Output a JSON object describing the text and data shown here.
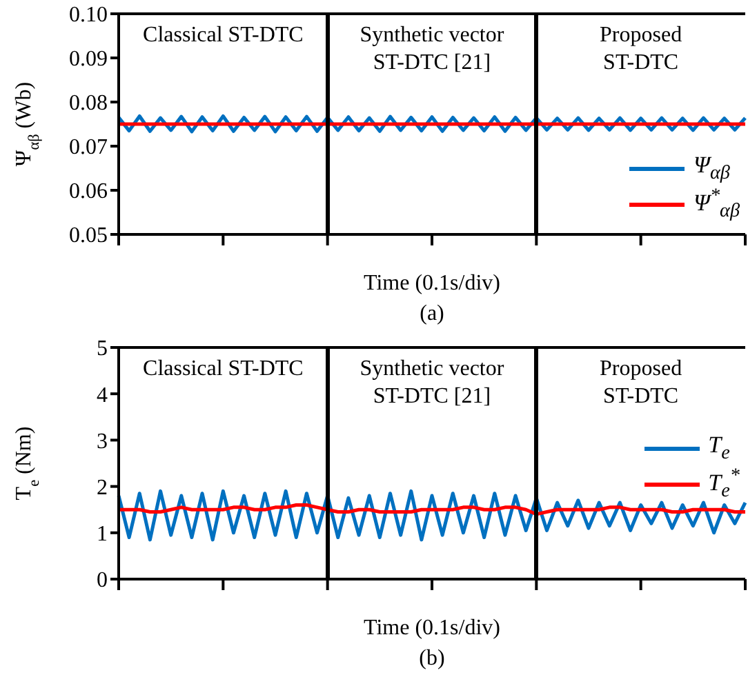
{
  "chart_data": [
    {
      "type": "line",
      "title": "(a)",
      "xlabel": "Time (0.1s/div)",
      "ylabel": "Ψ$_{αβ}$ (Wb)",
      "tick_labels": "y",
      "categories": [
        null,
        null,
        null,
        null,
        null,
        null,
        null,
        null,
        null,
        null,
        null,
        null,
        null,
        null,
        null,
        null,
        null,
        null,
        null,
        null,
        null,
        null,
        null,
        null,
        null,
        null,
        null,
        null,
        null,
        null,
        null,
        null,
        null,
        null,
        null,
        null,
        null,
        null,
        null,
        null,
        null,
        null,
        null,
        null,
        null,
        null,
        null,
        null,
        null,
        null,
        null,
        null,
        null,
        null,
        null,
        null,
        null,
        null,
        null,
        null,
        null
      ],
      "ylim": [
        0.05,
        0.1
      ],
      "yticks": [
        {
          "value": 0.05,
          "label": "0.05"
        },
        {
          "value": 0.06,
          "label": "0.06"
        },
        {
          "value": 0.07,
          "label": "0.07"
        },
        {
          "value": 0.08,
          "label": "0.08"
        },
        {
          "value": 0.09,
          "label": "0.09"
        },
        {
          "value": 0.1,
          "label": "0.10"
        }
      ],
      "legend": "bottom right",
      "line_style": "solid",
      "annotations": [
        "Classical ST-DTC",
        "Synthetic vector\nST-DTC [21]",
        "Proposed\nST-DTC"
      ],
      "series": [
        {
          "name": "Ψ$_{αβ}$",
          "color": "#0070c0",
          "values": [
            0.0765,
            0.0735,
            0.0768,
            0.0734,
            0.0764,
            0.0736,
            0.0767,
            0.0733,
            0.0766,
            0.0735,
            0.0768,
            0.0734,
            0.0765,
            0.0736,
            0.0767,
            0.0733,
            0.0766,
            0.0735,
            0.0767,
            0.0734,
            0.0765,
            0.0736,
            0.0766,
            0.0735,
            0.0764,
            0.0734,
            0.0767,
            0.0736,
            0.0765,
            0.0735,
            0.0766,
            0.0734,
            0.0765,
            0.0736,
            0.0764,
            0.0735,
            0.0766,
            0.0734,
            0.0765,
            0.0736,
            0.0764,
            0.0737,
            0.0763,
            0.0737,
            0.0764,
            0.0736,
            0.0763,
            0.0737,
            0.0764,
            0.0736,
            0.0763,
            0.0737,
            0.0764,
            0.0737,
            0.0763,
            0.0736,
            0.0764,
            0.0737,
            0.0763,
            0.0737,
            0.0764
          ]
        },
        {
          "name": "Ψ$^{*}$$_{αβ}$",
          "color": "#ff0000",
          "values": [
            0.075,
            0.075,
            0.075,
            0.075,
            0.075,
            0.075,
            0.075,
            0.075,
            0.075,
            0.075,
            0.075,
            0.075,
            0.075,
            0.075,
            0.075,
            0.075,
            0.075,
            0.075,
            0.075,
            0.075,
            0.075,
            0.075,
            0.075,
            0.075,
            0.075,
            0.075,
            0.075,
            0.075,
            0.075,
            0.075,
            0.075,
            0.075,
            0.075,
            0.075,
            0.075,
            0.075,
            0.075,
            0.075,
            0.075,
            0.075,
            0.075,
            0.075,
            0.075,
            0.075,
            0.075,
            0.075,
            0.075,
            0.075,
            0.075,
            0.075,
            0.075,
            0.075,
            0.075,
            0.075,
            0.075,
            0.075,
            0.075,
            0.075,
            0.075,
            0.075,
            0.075
          ]
        }
      ]
    },
    {
      "type": "line",
      "title": "(b)",
      "xlabel": "Time (0.1s/div)",
      "ylabel": "T$_{e}$ (Nm)",
      "tick_labels": "y",
      "categories": [
        null,
        null,
        null,
        null,
        null,
        null,
        null,
        null,
        null,
        null,
        null,
        null,
        null,
        null,
        null,
        null,
        null,
        null,
        null,
        null,
        null,
        null,
        null,
        null,
        null,
        null,
        null,
        null,
        null,
        null,
        null,
        null,
        null,
        null,
        null,
        null,
        null,
        null,
        null,
        null,
        null,
        null,
        null,
        null,
        null,
        null,
        null,
        null,
        null,
        null,
        null,
        null,
        null,
        null,
        null,
        null,
        null,
        null,
        null,
        null,
        null
      ],
      "ylim": [
        0,
        5
      ],
      "yticks": [
        0,
        1,
        2,
        3,
        4,
        5
      ],
      "legend": "right",
      "line_style": "solid",
      "annotations": [
        "Classical ST-DTC",
        "Synthetic vector\nST-DTC [21]",
        "Proposed\nST-DTC"
      ],
      "series": [
        {
          "name": "T$_{e}$",
          "color": "#0070c0",
          "values": [
            1.8,
            0.9,
            1.85,
            0.85,
            1.9,
            0.95,
            1.8,
            0.9,
            1.85,
            0.85,
            1.9,
            1.0,
            1.8,
            0.9,
            1.85,
            0.95,
            1.9,
            0.9,
            1.85,
            1.0,
            1.8,
            0.9,
            1.75,
            0.95,
            1.8,
            0.9,
            1.85,
            0.95,
            1.9,
            0.85,
            1.8,
            0.95,
            1.85,
            1.0,
            1.8,
            0.9,
            1.85,
            0.95,
            1.8,
            1.05,
            1.75,
            1.05,
            1.65,
            1.15,
            1.7,
            1.1,
            1.65,
            1.15,
            1.65,
            1.05,
            1.6,
            1.2,
            1.65,
            1.1,
            1.6,
            1.15,
            1.65,
            1.0,
            1.6,
            1.2,
            1.65
          ]
        },
        {
          "name": "T$_{e}$$^{*}$",
          "color": "#ff0000",
          "values": [
            1.5,
            1.5,
            1.5,
            1.45,
            1.45,
            1.5,
            1.55,
            1.5,
            1.5,
            1.5,
            1.5,
            1.55,
            1.55,
            1.5,
            1.5,
            1.55,
            1.55,
            1.6,
            1.6,
            1.55,
            1.5,
            1.45,
            1.45,
            1.5,
            1.5,
            1.45,
            1.45,
            1.45,
            1.45,
            1.5,
            1.5,
            1.5,
            1.5,
            1.55,
            1.55,
            1.5,
            1.5,
            1.55,
            1.55,
            1.5,
            1.4,
            1.45,
            1.5,
            1.5,
            1.5,
            1.5,
            1.5,
            1.55,
            1.55,
            1.5,
            1.5,
            1.5,
            1.5,
            1.45,
            1.45,
            1.5,
            1.5,
            1.5,
            1.5,
            1.45,
            1.45
          ]
        }
      ]
    }
  ]
}
